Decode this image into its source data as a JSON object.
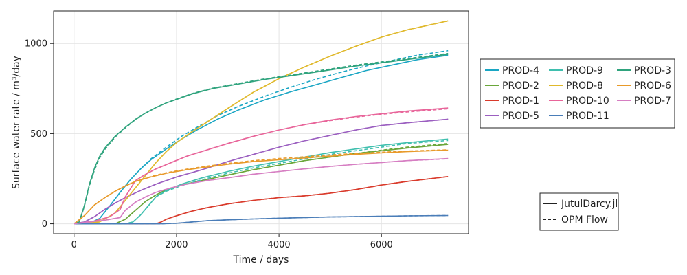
{
  "chart_data": {
    "type": "line",
    "xlabel": "Time / days",
    "ylabel": "Surface water rate / m³/day",
    "xlim": [
      -400,
      7700
    ],
    "ylim": [
      -55,
      1180
    ],
    "xticks": [
      0,
      2000,
      4000,
      6000
    ],
    "yticks": [
      0,
      500,
      1000
    ],
    "grid": true,
    "legend_placement": "right",
    "style_legend": [
      {
        "name": "JutulDarcy.jl",
        "dash": "solid"
      },
      {
        "name": "OPM Flow",
        "dash": "dashed"
      }
    ],
    "series": [
      {
        "name": "PROD-4",
        "color": "#1aa6c4",
        "x": [
          0,
          300,
          500,
          700,
          900,
          1100,
          1300,
          1500,
          1800,
          2100,
          2400,
          2800,
          3200,
          3700,
          4200,
          4700,
          5200,
          5700,
          6200,
          6700,
          7300
        ],
        "y": [
          0,
          3,
          30,
          100,
          175,
          245,
          305,
          355,
          415,
          470,
          520,
          580,
          630,
          685,
          730,
          770,
          810,
          850,
          880,
          910,
          935
        ],
        "y_opm": [
          0,
          3,
          30,
          100,
          175,
          245,
          305,
          360,
          425,
          485,
          535,
          600,
          650,
          705,
          755,
          800,
          840,
          875,
          905,
          935,
          960
        ]
      },
      {
        "name": "PROD-2",
        "color": "#6aa63a",
        "x": [
          0,
          800,
          1000,
          1200,
          1400,
          1600,
          1800,
          2100,
          2500,
          3000,
          3500,
          4000,
          4500,
          5000,
          5500,
          6000,
          6500,
          7300
        ],
        "y": [
          0,
          0,
          25,
          75,
          125,
          160,
          190,
          215,
          240,
          270,
          300,
          325,
          350,
          370,
          390,
          405,
          420,
          440
        ],
        "y_opm": [
          0,
          0,
          25,
          75,
          125,
          160,
          190,
          215,
          240,
          270,
          300,
          325,
          350,
          370,
          390,
          408,
          425,
          445
        ]
      },
      {
        "name": "PROD-1",
        "color": "#d93a2b",
        "x": [
          0,
          1600,
          1700,
          1800,
          2000,
          2300,
          2600,
          3000,
          3500,
          4000,
          4500,
          5000,
          5500,
          6000,
          6500,
          7000,
          7300
        ],
        "y": [
          0,
          0,
          10,
          25,
          45,
          70,
          90,
          110,
          130,
          145,
          155,
          170,
          190,
          215,
          235,
          252,
          262
        ],
        "y_opm": [
          0,
          0,
          10,
          25,
          45,
          70,
          90,
          110,
          130,
          145,
          155,
          170,
          190,
          215,
          235,
          252,
          262
        ]
      },
      {
        "name": "PROD-5",
        "color": "#9b5fc0",
        "x": [
          0,
          200,
          400,
          600,
          800,
          1000,
          1300,
          1600,
          2000,
          2500,
          3000,
          3500,
          4000,
          4500,
          5000,
          5500,
          6000,
          6500,
          7300
        ],
        "y": [
          0,
          10,
          40,
          80,
          115,
          145,
          185,
          220,
          260,
          300,
          345,
          385,
          425,
          460,
          490,
          520,
          545,
          560,
          580
        ],
        "y_opm": [
          0,
          10,
          40,
          80,
          115,
          145,
          185,
          220,
          260,
          300,
          345,
          385,
          425,
          460,
          490,
          520,
          545,
          560,
          580
        ]
      },
      {
        "name": "PROD-9",
        "color": "#3fbfae",
        "x": [
          0,
          1000,
          1150,
          1300,
          1450,
          1600,
          1800,
          2100,
          2500,
          3000,
          3500,
          4000,
          4500,
          5000,
          5500,
          6000,
          6500,
          7300
        ],
        "y": [
          0,
          0,
          10,
          50,
          100,
          150,
          185,
          220,
          255,
          290,
          320,
          345,
          370,
          395,
          415,
          435,
          450,
          470
        ],
        "y_opm": [
          0,
          0,
          10,
          50,
          100,
          150,
          180,
          212,
          245,
          280,
          310,
          335,
          360,
          385,
          405,
          425,
          445,
          462
        ]
      },
      {
        "name": "PROD-8",
        "color": "#e0b92c",
        "x": [
          0,
          500,
          800,
          1000,
          1200,
          1400,
          1600,
          1800,
          2000,
          2300,
          2600,
          3000,
          3500,
          4000,
          4500,
          5000,
          5500,
          6000,
          6500,
          7300
        ],
        "y": [
          0,
          10,
          60,
          130,
          200,
          270,
          340,
          400,
          450,
          510,
          565,
          640,
          730,
          805,
          870,
          930,
          985,
          1035,
          1075,
          1125
        ],
        "y_opm": [
          0,
          10,
          60,
          130,
          200,
          270,
          340,
          400,
          450,
          510,
          565,
          640,
          730,
          805,
          870,
          930,
          985,
          1035,
          1075,
          1125
        ]
      },
      {
        "name": "PROD-10",
        "color": "#e8659a",
        "x": [
          0,
          400,
          700,
          900,
          1000,
          1200,
          1400,
          1600,
          1900,
          2200,
          2600,
          3000,
          3500,
          4000,
          4500,
          5000,
          5500,
          6000,
          6500,
          7300
        ],
        "y": [
          0,
          15,
          40,
          80,
          150,
          240,
          275,
          305,
          340,
          375,
          410,
          445,
          485,
          520,
          550,
          575,
          595,
          610,
          625,
          642
        ],
        "y_opm": [
          0,
          15,
          40,
          80,
          150,
          240,
          275,
          305,
          340,
          375,
          410,
          445,
          485,
          520,
          550,
          572,
          592,
          607,
          620,
          638
        ]
      },
      {
        "name": "PROD-11",
        "color": "#4a7db8",
        "x": [
          0,
          1700,
          2000,
          2300,
          2600,
          3000,
          3500,
          4000,
          4500,
          5000,
          5500,
          6000,
          6500,
          7300
        ],
        "y": [
          0,
          0,
          3,
          10,
          17,
          22,
          27,
          31,
          35,
          38,
          40,
          42,
          44,
          46
        ],
        "y_opm": [
          0,
          0,
          3,
          10,
          17,
          22,
          27,
          31,
          35,
          38,
          40,
          42,
          44,
          46
        ]
      },
      {
        "name": "PROD-3",
        "color": "#2fa37d",
        "x": [
          0,
          100,
          200,
          300,
          400,
          500,
          600,
          800,
          1000,
          1200,
          1400,
          1600,
          1800,
          2000,
          2300,
          2700,
          3200,
          3700,
          4200,
          4800,
          5500,
          6200,
          7300
        ],
        "y": [
          0,
          10,
          100,
          220,
          310,
          375,
          420,
          485,
          535,
          580,
          615,
          645,
          670,
          690,
          720,
          750,
          775,
          800,
          820,
          845,
          875,
          900,
          940
        ],
        "y_opm": [
          0,
          10,
          95,
          212,
          300,
          365,
          412,
          480,
          532,
          578,
          614,
          645,
          670,
          692,
          722,
          752,
          778,
          803,
          824,
          850,
          880,
          905,
          945
        ]
      },
      {
        "name": "PROD-6",
        "color": "#e89a2a",
        "x": [
          0,
          200,
          400,
          600,
          800,
          1000,
          1200,
          1500,
          1800,
          2200,
          2600,
          3000,
          3500,
          4000,
          4500,
          5000,
          5500,
          6000,
          6500,
          7300
        ],
        "y": [
          0,
          45,
          105,
          145,
          180,
          210,
          235,
          260,
          280,
          300,
          315,
          330,
          345,
          355,
          365,
          375,
          385,
          393,
          400,
          408
        ],
        "y_opm": [
          0,
          45,
          105,
          145,
          180,
          210,
          235,
          262,
          283,
          303,
          320,
          335,
          350,
          362,
          372,
          382,
          390,
          397,
          403,
          410
        ]
      },
      {
        "name": "PROD-7",
        "color": "#d67ec2",
        "x": [
          0,
          300,
          600,
          900,
          1000,
          1200,
          1400,
          1600,
          1900,
          2200,
          2600,
          3000,
          3500,
          4000,
          4500,
          5000,
          5500,
          6000,
          6500,
          7300
        ],
        "y": [
          0,
          10,
          20,
          35,
          75,
          120,
          150,
          175,
          200,
          220,
          240,
          255,
          275,
          290,
          305,
          318,
          330,
          340,
          350,
          362
        ],
        "y_opm": [
          0,
          10,
          20,
          35,
          75,
          120,
          150,
          175,
          200,
          220,
          240,
          255,
          275,
          290,
          305,
          318,
          330,
          340,
          350,
          360
        ]
      }
    ]
  }
}
